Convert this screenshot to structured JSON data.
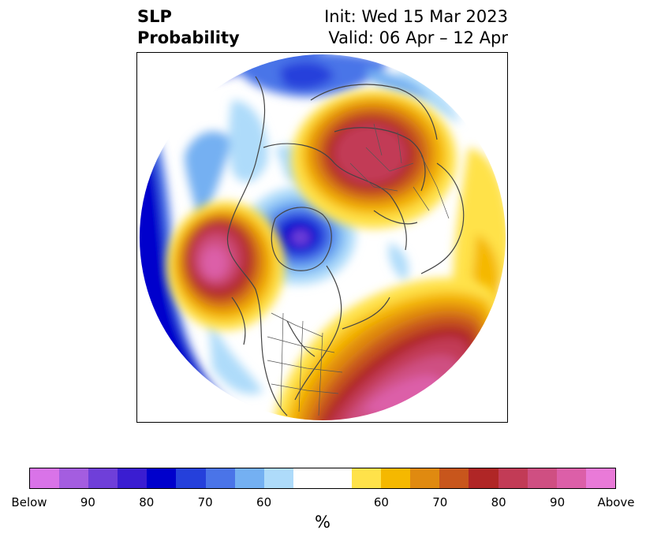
{
  "title": {
    "left_line1": "SLP",
    "left_line2": "Probability",
    "right_line1": "Init: Wed 15 Mar 2023",
    "right_line2": "Valid: 06 Apr – 12 Apr"
  },
  "map": {
    "projection": "north-polar-stereographic",
    "fields": [
      {
        "name": "below-normal-high-prob",
        "color": "#0000cc"
      },
      {
        "name": "above-normal-high-prob",
        "color": "#c23b56"
      }
    ]
  },
  "colorbar": {
    "colors": [
      "#d973e8",
      "#a45de0",
      "#6f3fd9",
      "#3a1dd1",
      "#0000cc",
      "#2540db",
      "#4a74e8",
      "#74b0f2",
      "#aedbfa",
      "#ffffff",
      "#ffffff",
      "#ffe24a",
      "#f5b800",
      "#e08a10",
      "#c8561c",
      "#b02626",
      "#c23b56",
      "#cf4f82",
      "#dc5fa8",
      "#e97ad8"
    ],
    "tick_labels": [
      "Below",
      "90",
      "80",
      "70",
      "60",
      "60",
      "70",
      "80",
      "90",
      "Above"
    ],
    "unit": "%"
  }
}
